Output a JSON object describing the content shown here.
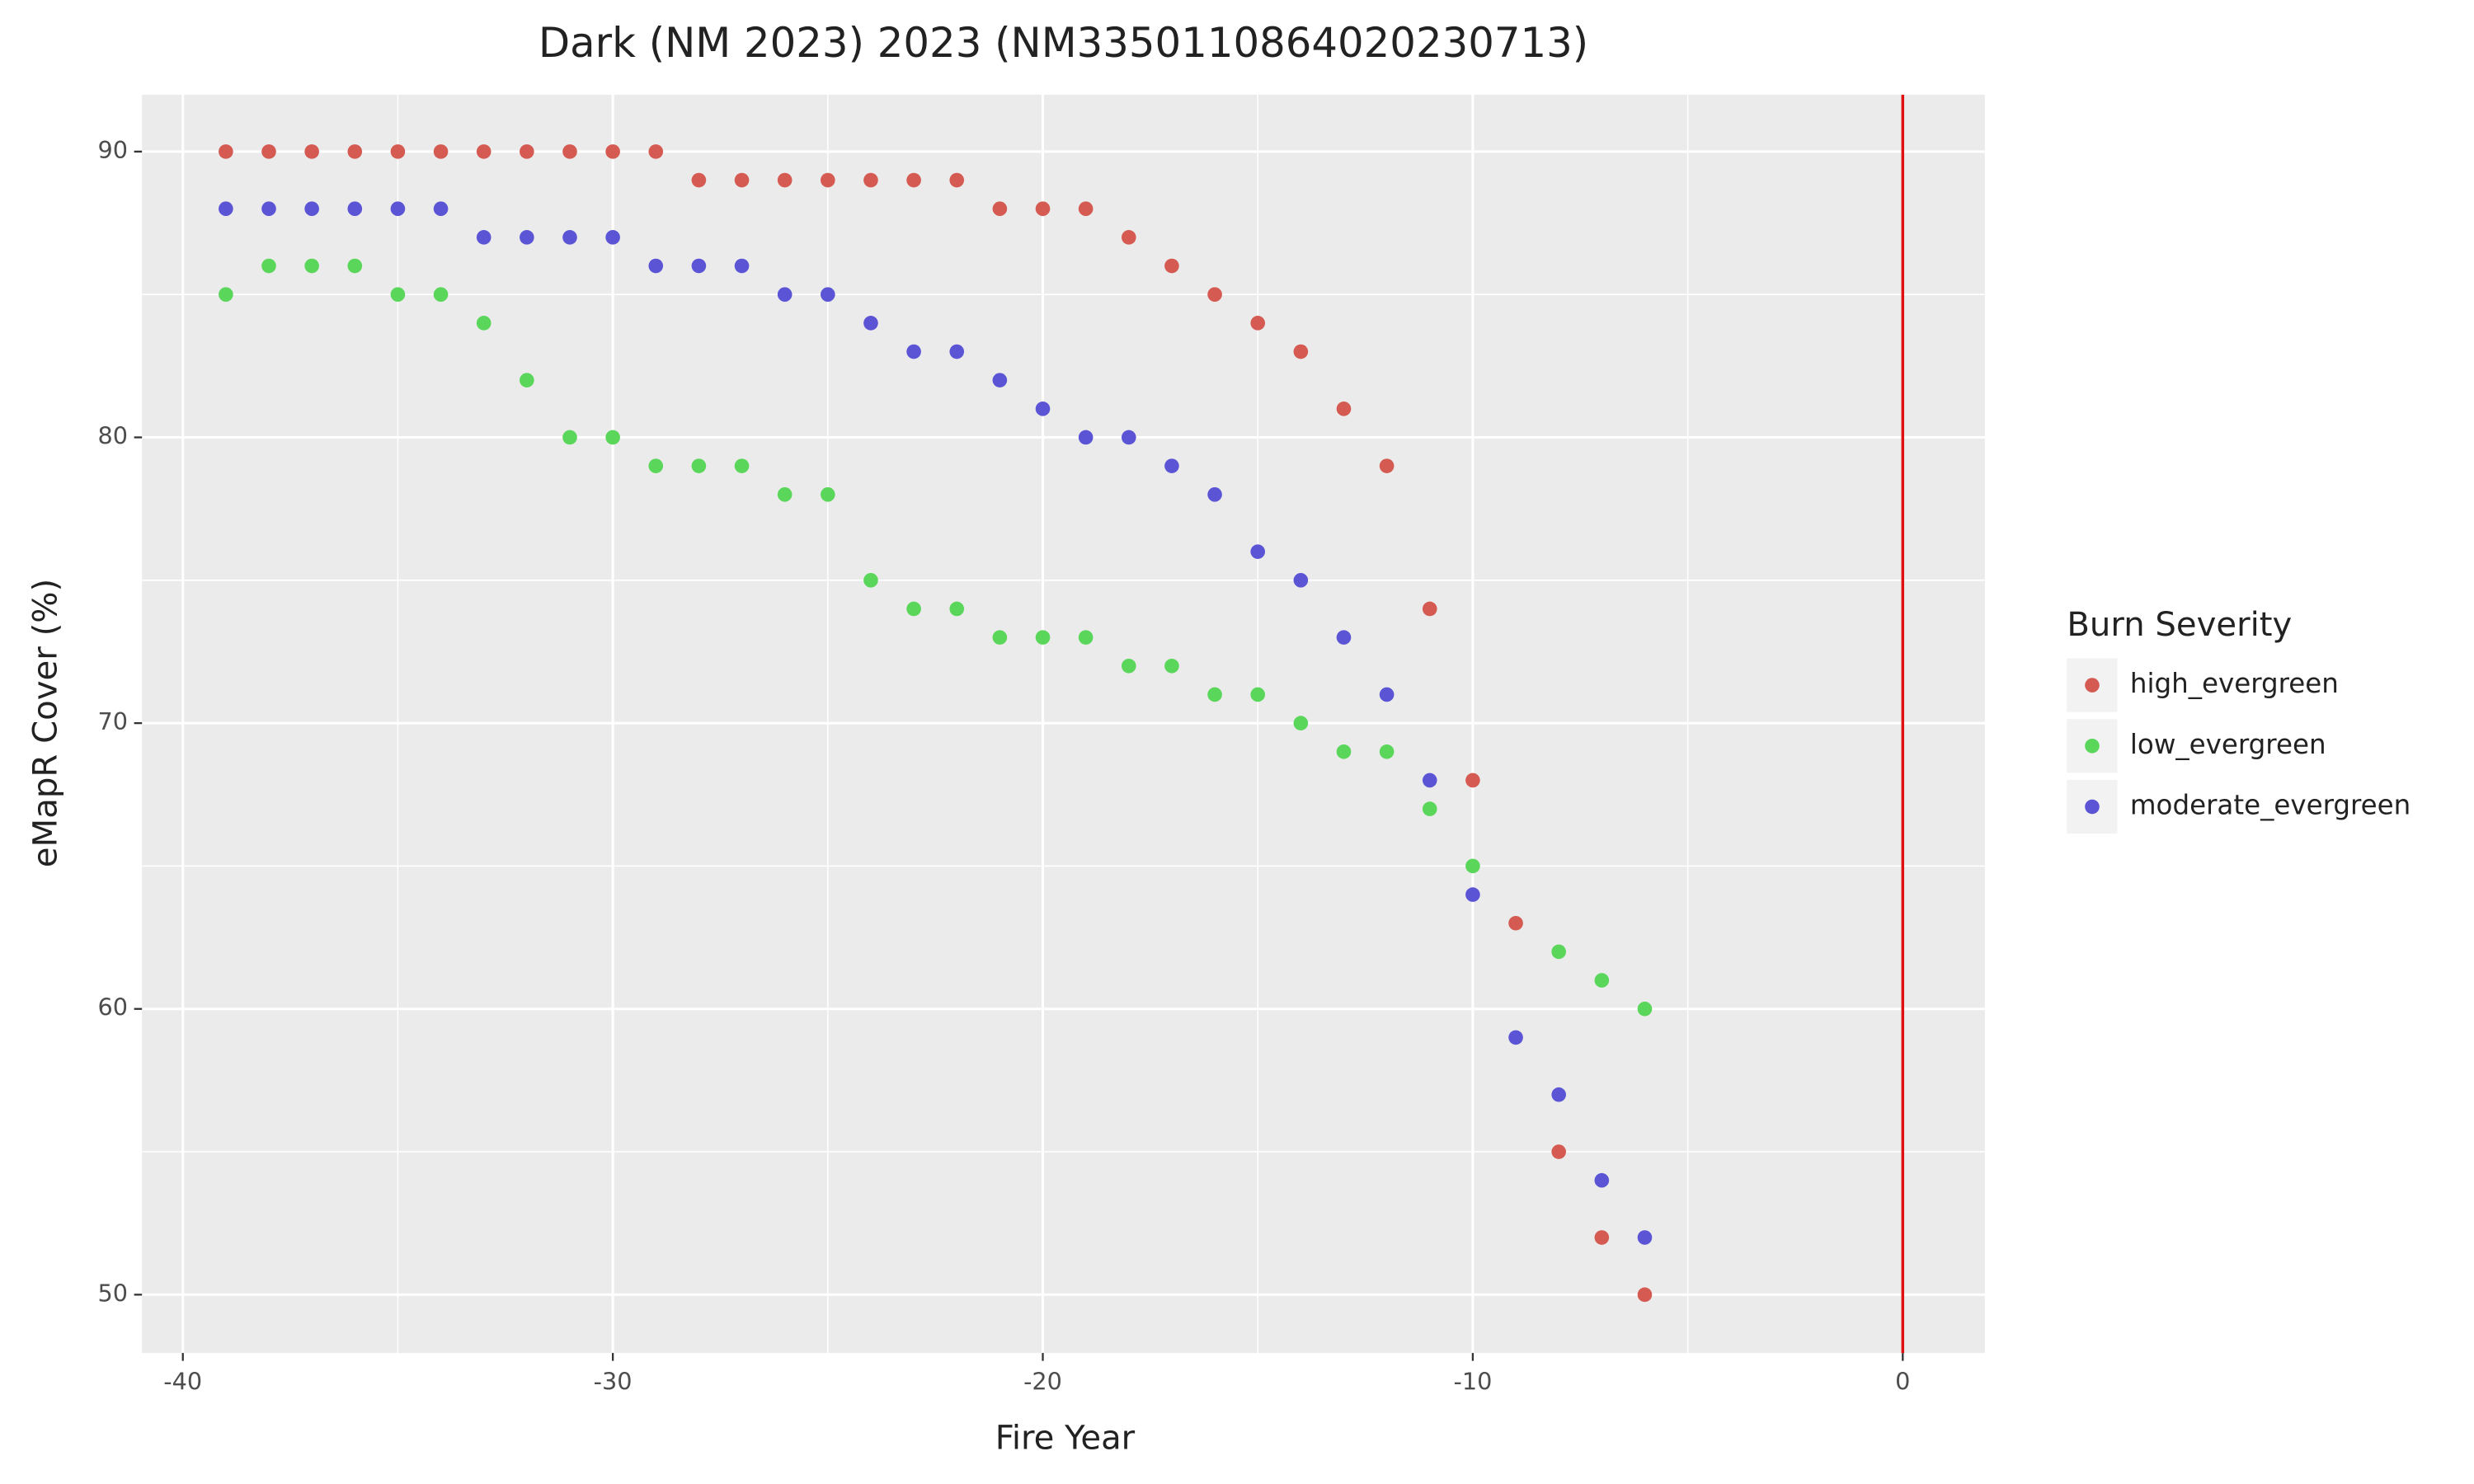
{
  "chart_data": {
    "type": "scatter",
    "title": "Dark (NM 2023) 2023 (NM3350110864020230713)",
    "x_label": "Fire Year",
    "y_label": "eMapR Cover (%)",
    "legend_title": "Burn Severity",
    "legend_position": "right",
    "grid": true,
    "x": [
      -39,
      -38,
      -37,
      -36,
      -35,
      -34,
      -33,
      -32,
      -31,
      -30,
      -29,
      -28,
      -27,
      -26,
      -25,
      -24,
      -23,
      -22,
      -21,
      -20,
      -19,
      -18,
      -17,
      -16,
      -15,
      -14,
      -13,
      -12,
      -11,
      -10,
      -9,
      -8,
      -7,
      -6
    ],
    "series": [
      {
        "name": "high_evergreen",
        "color": "#d45a52",
        "values": [
          90,
          90,
          90,
          90,
          90,
          90,
          90,
          90,
          90,
          90,
          90,
          89,
          89,
          89,
          89,
          89,
          89,
          89,
          88,
          88,
          88,
          87,
          86,
          85,
          84,
          83,
          81,
          79,
          74,
          68,
          63,
          55,
          52,
          50
        ]
      },
      {
        "name": "low_evergreen",
        "color": "#5ad65a",
        "values": [
          85,
          86,
          86,
          86,
          85,
          85,
          84,
          82,
          80,
          80,
          79,
          79,
          79,
          78,
          78,
          75,
          74,
          74,
          73,
          73,
          73,
          72,
          72,
          71,
          71,
          70,
          69,
          69,
          67,
          65,
          null,
          62,
          61,
          60
        ]
      },
      {
        "name": "moderate_evergreen",
        "color": "#5b55d6",
        "values": [
          88,
          88,
          88,
          88,
          88,
          88,
          87,
          87,
          87,
          87,
          86,
          86,
          86,
          85,
          85,
          84,
          83,
          83,
          82,
          81,
          80,
          80,
          79,
          78,
          76,
          75,
          73,
          71,
          68,
          64,
          59,
          57,
          54,
          52
        ]
      }
    ],
    "vline": {
      "x": 0,
      "color": "#e01010"
    },
    "xlim": [
      -40.95,
      1.91
    ],
    "xticks": [
      -40,
      -30,
      -20,
      -10,
      0
    ],
    "ylim": [
      47.96,
      91.99
    ],
    "yticks": [
      50,
      60,
      70,
      80,
      90
    ]
  }
}
